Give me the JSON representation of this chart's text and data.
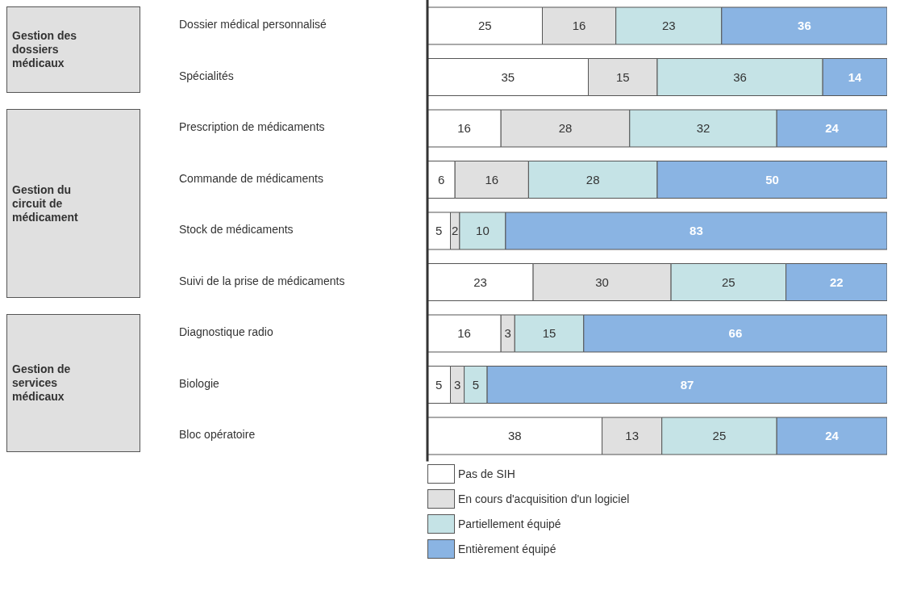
{
  "chart_data": {
    "type": "bar",
    "orientation": "horizontal",
    "stacked": true,
    "data_labels": true,
    "legend": "bottom",
    "categories": [
      "Dossier médical personnalisé",
      "Spécialités",
      "Prescription de médicaments",
      "Commande de médicaments",
      "Stock de médicaments",
      "Suivi de la prise de médicaments",
      "Diagnostique radio",
      "Biologie",
      "Bloc opératoire"
    ],
    "series": [
      {
        "name": "Pas de SIH",
        "color": "#ffffff",
        "values": [
          25,
          35,
          16,
          6,
          5,
          23,
          16,
          5,
          38
        ]
      },
      {
        "name": "En cours d'acquisition d'un logiciel",
        "color": "#e0e0e0",
        "values": [
          16,
          15,
          28,
          16,
          2,
          30,
          3,
          3,
          13
        ]
      },
      {
        "name": "Partiellement équipé",
        "color": "#c5e3e6",
        "values": [
          23,
          36,
          32,
          28,
          10,
          25,
          15,
          5,
          25
        ]
      },
      {
        "name": "Entièrement équipé",
        "color": "#8ab4e3",
        "values": [
          36,
          14,
          24,
          50,
          83,
          22,
          66,
          87,
          24
        ]
      }
    ],
    "annotations": [
      "Gestion des dossiers médicaux",
      "Gestion du circuit de médicament",
      "Gestion de services médicaux"
    ]
  }
}
